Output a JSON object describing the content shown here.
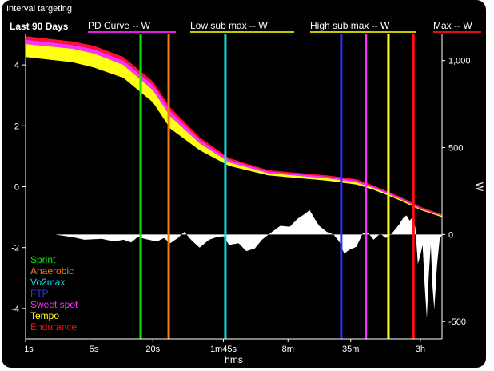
{
  "window": {
    "title": "Interval targeting"
  },
  "header": {
    "period": "Last 90 Days",
    "items": [
      {
        "label": "PD Curve  -- W",
        "color": "#e020e0"
      },
      {
        "label": "Low sub max  -- W",
        "color": "#c8c800"
      },
      {
        "label": "High sub max  -- W",
        "color": "#c8c800"
      },
      {
        "label": "Max  -- W",
        "color": "#e01010"
      }
    ]
  },
  "chart_data": {
    "type": "line",
    "xlabel": "hms",
    "x_ticks": [
      "1s",
      "5s",
      "20s",
      "1m45s",
      "8m",
      "35m",
      "3h"
    ],
    "left_axis": {
      "ticks": [
        4,
        2,
        0,
        -2,
        -4
      ],
      "ylim": [
        -5,
        5
      ]
    },
    "right_axis": {
      "label": "W",
      "ticks": [
        1000,
        500,
        0,
        -500
      ],
      "tick_labels": [
        "1,000",
        "500",
        "0",
        "-500"
      ],
      "ylim": [
        -600,
        1150
      ]
    },
    "grid": false,
    "legend_position": "bottom-left",
    "legend": [
      {
        "name": "Sprint",
        "color": "#10e010"
      },
      {
        "name": "Anaerobic",
        "color": "#f07a10"
      },
      {
        "name": "Vo2max",
        "color": "#10d8e0"
      },
      {
        "name": "FTP",
        "color": "#3030ff"
      },
      {
        "name": "Sweet spot",
        "color": "#ff30ff"
      },
      {
        "name": "Tempo",
        "color": "#ffff20"
      },
      {
        "name": "Endurance",
        "color": "#ff1010"
      }
    ],
    "zone_lines": [
      {
        "zone": "Sprint",
        "x_seconds": 15,
        "color": "#10e010"
      },
      {
        "zone": "Anaerobic",
        "x_seconds": 29,
        "color": "#f07a10"
      },
      {
        "zone": "Vo2max",
        "x_seconds": 110,
        "color": "#10d8e0"
      },
      {
        "zone": "FTP",
        "x_seconds": 1680,
        "color": "#3030ff"
      },
      {
        "zone": "Sweet spot",
        "x_seconds": 3000,
        "color": "#ff30ff"
      },
      {
        "zone": "Tempo",
        "x_seconds": 5100,
        "color": "#ffff20"
      },
      {
        "zone": "Endurance",
        "x_seconds": 9200,
        "color": "#ff1010"
      }
    ],
    "band": {
      "x_seconds": [
        1,
        3,
        5,
        10,
        20,
        30,
        60,
        120,
        300,
        600,
        1200,
        2400,
        3600,
        5400,
        7200,
        10800,
        18000
      ],
      "upper_W": [
        1140,
        1110,
        1085,
        1020,
        880,
        730,
        560,
        440,
        370,
        355,
        340,
        318,
        282,
        240,
        210,
        160,
        115
      ],
      "pink_W": [
        1120,
        1090,
        1065,
        1000,
        860,
        710,
        545,
        430,
        363,
        348,
        333,
        310,
        275,
        233,
        203,
        153,
        110
      ],
      "yellow_W": [
        1095,
        1068,
        1040,
        975,
        830,
        680,
        525,
        415,
        353,
        338,
        323,
        300,
        267,
        226,
        196,
        147,
        106
      ],
      "lower_W": [
        1020,
        990,
        960,
        900,
        760,
        610,
        485,
        395,
        340,
        325,
        310,
        288,
        257,
        218,
        188,
        142,
        100
      ]
    },
    "diff_area": {
      "x_seconds": [
        1,
        2,
        3,
        4,
        6,
        8,
        10,
        12,
        14,
        18,
        22,
        26,
        30,
        36,
        42,
        50,
        60,
        75,
        90,
        105,
        120,
        150,
        180,
        220,
        260,
        320,
        400,
        500,
        600,
        700,
        800,
        900,
        1000,
        1200,
        1400,
        1600,
        1800,
        2000,
        2400,
        2800,
        3200,
        3600,
        4200,
        4800,
        5400,
        6000,
        6600,
        7200,
        7800,
        8400,
        9000,
        9600,
        10200,
        10800,
        11400,
        12000,
        12600,
        13200,
        13800,
        14400,
        15000,
        16000,
        17000,
        18000
      ],
      "values_W": [
        0,
        0,
        -15,
        -30,
        -25,
        -40,
        -30,
        -45,
        -15,
        -30,
        -40,
        -20,
        -50,
        -20,
        15,
        -35,
        -75,
        -30,
        -15,
        -10,
        -60,
        -50,
        -95,
        -80,
        -30,
        10,
        50,
        45,
        90,
        115,
        140,
        90,
        50,
        15,
        0,
        -40,
        -110,
        -90,
        -70,
        10,
        5,
        -30,
        5,
        -20,
        0,
        30,
        60,
        95,
        110,
        80,
        100,
        40,
        -170,
        -120,
        -60,
        -300,
        -480,
        -230,
        -60,
        -300,
        -430,
        -180,
        -30,
        0
      ]
    }
  }
}
